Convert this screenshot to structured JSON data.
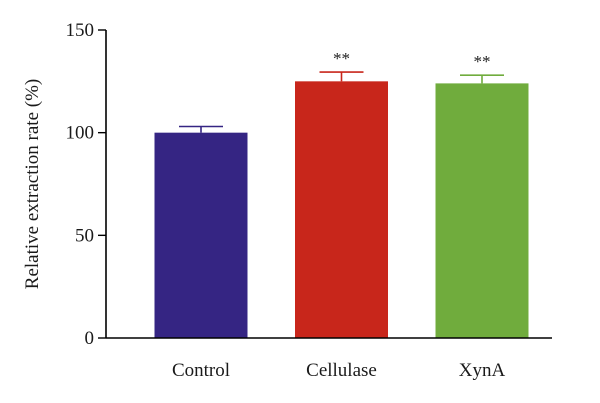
{
  "chart_data": {
    "type": "bar",
    "ylabel": "Relative extraction rate (%)",
    "xlabel": "",
    "ylim": [
      0,
      150
    ],
    "yticks": [
      0,
      50,
      100,
      150
    ],
    "categories": [
      "Control",
      "Cellulase",
      "XynA"
    ],
    "values": [
      100,
      125,
      124
    ],
    "errors": [
      3,
      4.5,
      4
    ],
    "significance": [
      "",
      "**",
      "**"
    ],
    "colors": [
      "#352583",
      "#c8261b",
      "#70ac3d"
    ],
    "error_colors": [
      "#352583",
      "#c8261b",
      "#70ac3d"
    ],
    "grid": false,
    "legend": "none"
  }
}
